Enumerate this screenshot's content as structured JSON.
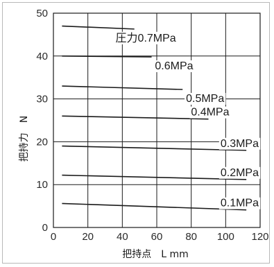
{
  "chart_data": {
    "type": "line",
    "xlabel": "把持点　L mm",
    "ylabel": "把持力　N",
    "xlim": [
      0,
      120
    ],
    "ylim": [
      0,
      50
    ],
    "xticks": [
      0,
      20,
      40,
      60,
      80,
      100,
      120
    ],
    "yticks": [
      0,
      10,
      20,
      30,
      40,
      50
    ],
    "grid": true,
    "series": [
      {
        "name": "圧力0.7MPa",
        "x": [
          5,
          47
        ],
        "y": [
          47.0,
          46.3
        ]
      },
      {
        "name": "0.6MPa",
        "x": [
          5,
          57
        ],
        "y": [
          40.0,
          39.8
        ]
      },
      {
        "name": "0.5MPa",
        "x": [
          5,
          75
        ],
        "y": [
          33.0,
          32.2
        ]
      },
      {
        "name": "0.4MPa",
        "x": [
          5,
          90
        ],
        "y": [
          26.0,
          25.3
        ]
      },
      {
        "name": "0.3MPa",
        "x": [
          5,
          112
        ],
        "y": [
          19.0,
          18.0
        ]
      },
      {
        "name": "0.2MPa",
        "x": [
          5,
          112
        ],
        "y": [
          12.2,
          11.2
        ]
      },
      {
        "name": "0.1MPa",
        "x": [
          5,
          112
        ],
        "y": [
          5.6,
          4.1
        ]
      }
    ]
  },
  "colors": {
    "line": "#1a1a1a",
    "grid": "#1a1a1a",
    "label_bg": "#ffffff"
  }
}
